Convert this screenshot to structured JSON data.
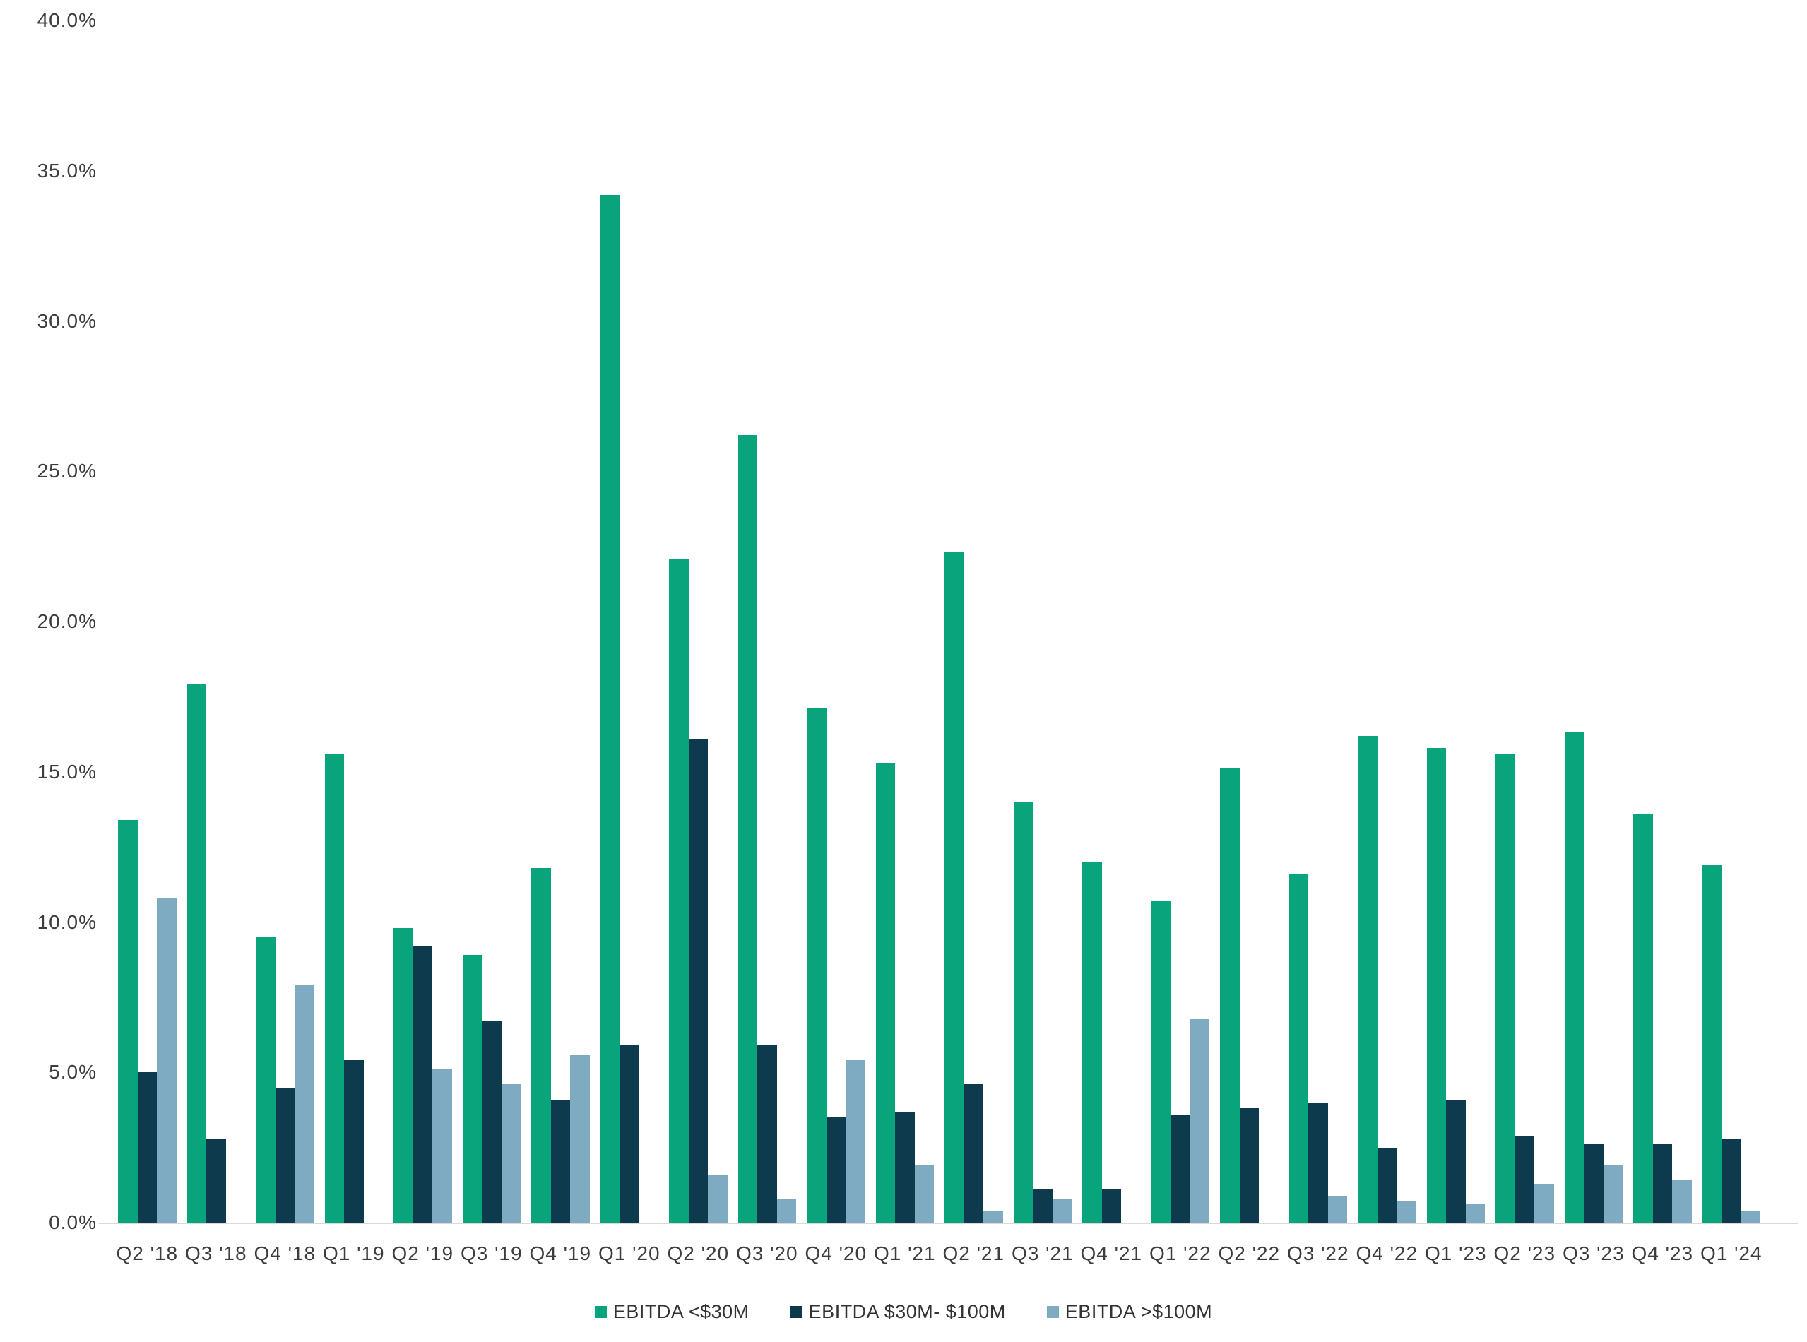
{
  "chart_data": {
    "type": "bar",
    "title": "",
    "xlabel": "",
    "ylabel": "",
    "grid": false,
    "legend_position": "bottom",
    "y_axis": {
      "min": 0,
      "max": 40,
      "step": 5,
      "unit": "%",
      "tick_labels": [
        "0.0%",
        "5.0%",
        "10.0%",
        "15.0%",
        "20.0%",
        "25.0%",
        "30.0%",
        "35.0%",
        "40.0%"
      ]
    },
    "categories": [
      "Q2 '18",
      "Q3 '18",
      "Q4 '18",
      "Q1 '19",
      "Q2 '19",
      "Q3 '19",
      "Q4 '19",
      "Q1 '20",
      "Q2 '20",
      "Q3 '20",
      "Q4 '20",
      "Q1 '21",
      "Q2 '21",
      "Q3 '21",
      "Q4 '21",
      "Q1 '22",
      "Q2 '22",
      "Q3 '22",
      "Q4 '22",
      "Q1 '23",
      "Q2 '23",
      "Q3 '23",
      "Q4 '23",
      "Q1 '24"
    ],
    "series": [
      {
        "name": "EBITDA <$30M",
        "color": "#0aa47c",
        "values": [
          13.4,
          17.9,
          9.5,
          15.6,
          9.8,
          8.9,
          11.8,
          34.2,
          22.1,
          26.2,
          17.1,
          15.3,
          22.3,
          14.0,
          12.0,
          10.7,
          15.1,
          11.6,
          16.2,
          15.8,
          15.6,
          16.3,
          13.6,
          11.9
        ]
      },
      {
        "name": "EBITDA $30M- $100M",
        "color": "#0d3b4d",
        "values": [
          5.0,
          2.8,
          4.5,
          5.4,
          9.2,
          6.7,
          4.1,
          5.9,
          16.1,
          5.9,
          3.5,
          3.7,
          4.6,
          1.1,
          1.1,
          3.6,
          3.8,
          4.0,
          2.5,
          4.1,
          2.9,
          2.6,
          2.6,
          2.8
        ]
      },
      {
        "name": "EBITDA >$100M",
        "color": "#7fabc2",
        "values": [
          10.8,
          null,
          7.9,
          null,
          5.1,
          4.6,
          5.6,
          null,
          1.6,
          0.8,
          5.4,
          1.9,
          0.4,
          0.8,
          null,
          6.8,
          null,
          0.9,
          0.7,
          0.6,
          1.3,
          1.9,
          1.4,
          0.4
        ]
      }
    ],
    "axis_line_color": "#d9d9d9",
    "label_color": "#3d3d3d"
  }
}
